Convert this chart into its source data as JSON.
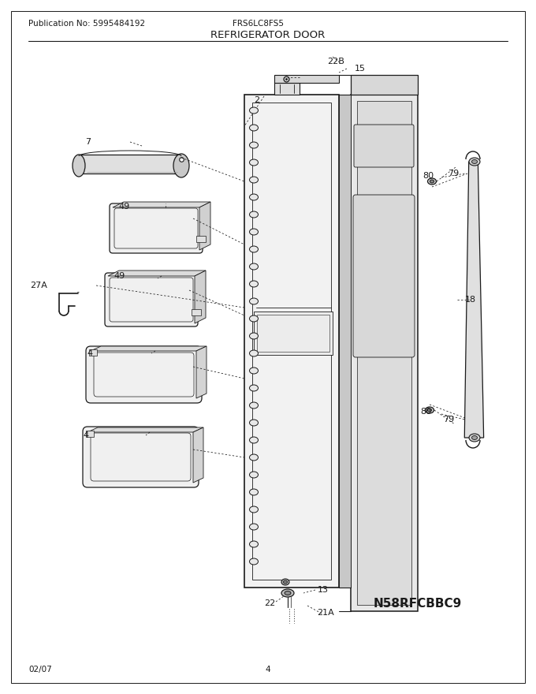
{
  "bg_color": "#ffffff",
  "line_color": "#1a1a1a",
  "publication": "Publication No: 5995484192",
  "model": "FRS6LC8FS5",
  "title": "REFRIGERATOR DOOR",
  "footer_left": "02/07",
  "footer_center": "4",
  "watermark": "N58RFCBBC9"
}
